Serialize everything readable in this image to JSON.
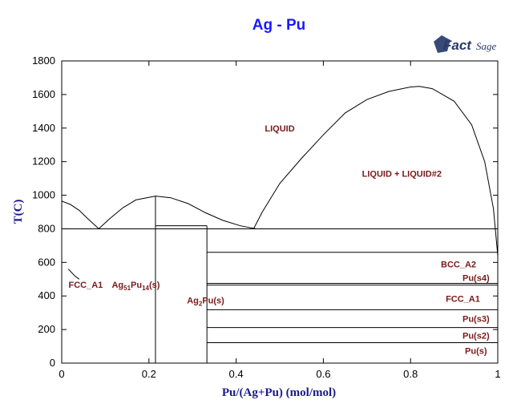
{
  "chart_data": {
    "type": "phase-diagram",
    "title": "Ag - Pu",
    "xlabel": "Pu/(Ag+Pu) (mol/mol)",
    "ylabel": "T(C)",
    "xlim": [
      0,
      1
    ],
    "ylim": [
      0,
      1800
    ],
    "x_ticks": [
      "0",
      "0.2",
      "0.4",
      "0.6",
      "0.8",
      "1"
    ],
    "y_ticks": [
      "0",
      "200",
      "400",
      "600",
      "800",
      "1000",
      "1200",
      "1400",
      "1600",
      "1800"
    ],
    "grid": false,
    "logo": "FactSage",
    "curves": [
      {
        "name": "liquidus-ag-side",
        "points": [
          [
            0,
            965
          ],
          [
            0.02,
            945
          ],
          [
            0.04,
            910
          ],
          [
            0.06,
            860
          ],
          [
            0.085,
            800
          ]
        ]
      },
      {
        "name": "liquidus-compound-dome",
        "points": [
          [
            0.085,
            800
          ],
          [
            0.11,
            860
          ],
          [
            0.14,
            925
          ],
          [
            0.17,
            972
          ],
          [
            0.215,
            995
          ],
          [
            0.25,
            985
          ],
          [
            0.29,
            950
          ],
          [
            0.33,
            895
          ],
          [
            0.37,
            850
          ],
          [
            0.41,
            818
          ],
          [
            0.445,
            800
          ]
        ]
      },
      {
        "name": "miscibility-gap",
        "points": [
          [
            0.44,
            800
          ],
          [
            0.46,
            900
          ],
          [
            0.5,
            1070
          ],
          [
            0.55,
            1220
          ],
          [
            0.6,
            1360
          ],
          [
            0.65,
            1490
          ],
          [
            0.7,
            1570
          ],
          [
            0.75,
            1618
          ],
          [
            0.8,
            1645
          ],
          [
            0.82,
            1648
          ],
          [
            0.85,
            1635
          ],
          [
            0.9,
            1560
          ],
          [
            0.94,
            1420
          ],
          [
            0.97,
            1200
          ],
          [
            0.99,
            920
          ],
          [
            1.0,
            640
          ]
        ]
      },
      {
        "name": "fcc-solvus",
        "points": [
          [
            0.015,
            560
          ],
          [
            0.03,
            520
          ],
          [
            0.04,
            500
          ]
        ]
      }
    ],
    "isotherms": [
      {
        "T": 800,
        "x": [
          0,
          1
        ]
      },
      {
        "T": 818,
        "x": [
          0.215,
          0.333
        ]
      },
      {
        "T": 660,
        "x": [
          0.333,
          1
        ]
      },
      {
        "T": 475,
        "x": [
          0.333,
          1
        ]
      },
      {
        "T": 465,
        "x": [
          0.333,
          1
        ]
      },
      {
        "T": 318,
        "x": [
          0.333,
          1
        ]
      },
      {
        "T": 212,
        "x": [
          0.333,
          1
        ]
      },
      {
        "T": 122,
        "x": [
          0.333,
          1
        ]
      }
    ],
    "vertical_lines": [
      {
        "x": 0.215,
        "T": [
          0,
          995
        ]
      },
      {
        "x": 0.333,
        "T": [
          0,
          818
        ]
      }
    ],
    "regions": [
      {
        "name": "liquid",
        "label": "LIQUID",
        "x": 0.5,
        "T": 1380
      },
      {
        "name": "liquid-gap",
        "label": "LIQUID + LIQUID#2",
        "x": 0.78,
        "T": 1110
      },
      {
        "name": "fcc-a1-left",
        "label": "FCC_A1",
        "x": 0.055,
        "T": 450
      },
      {
        "name": "ag51pu14",
        "label": "Ag",
        "sub1": "51",
        "mid": "Pu",
        "sub2": "14",
        "tail": "(s)",
        "x": 0.17,
        "T": 450
      },
      {
        "name": "ag2pu",
        "label": "Ag",
        "sub1": "2",
        "mid": "Pu(s)",
        "x": 0.33,
        "T": 355
      },
      {
        "name": "bcc-a2",
        "label": "BCC_A2",
        "x": 0.91,
        "T": 570
      },
      {
        "name": "pu-s4",
        "label": "Pu(s4)",
        "x": 0.95,
        "T": 490
      },
      {
        "name": "fcc-a1-right",
        "label": "FCC_A1",
        "x": 0.92,
        "T": 365
      },
      {
        "name": "pu-s3",
        "label": "Pu(s3)",
        "x": 0.95,
        "T": 245
      },
      {
        "name": "pu-s2",
        "label": "Pu(s2)",
        "x": 0.95,
        "T": 145
      },
      {
        "name": "pu-s",
        "label": "Pu(s)",
        "x": 0.95,
        "T": 55
      }
    ]
  }
}
